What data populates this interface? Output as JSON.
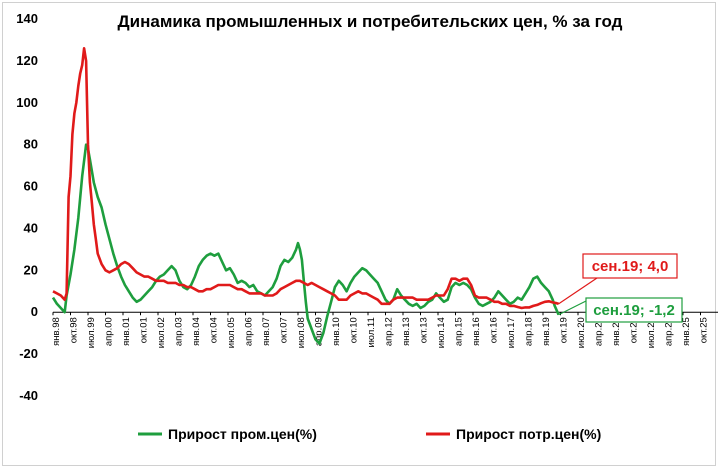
{
  "chart_data": {
    "type": "line",
    "title": "Динамика промышленных и потребительских цен, % за год",
    "xlabel": "",
    "ylabel": "",
    "ylim": [
      -40,
      140
    ],
    "yticks": [
      -40,
      -20,
      0,
      20,
      40,
      60,
      80,
      100,
      120,
      140
    ],
    "grid": false,
    "legend_position": "bottom",
    "x_tick_labels": [
      "янв.98",
      "окт.98",
      "июл.99",
      "апр.00",
      "янв.01",
      "окт.01",
      "июл.02",
      "апр.03",
      "янв.04",
      "окт.04",
      "июл.05",
      "апр.06",
      "янв.07",
      "окт.07",
      "июл.08",
      "апр.09",
      "янв.10",
      "окт.10",
      "июл.11",
      "апр.12",
      "янв.13",
      "окт.13",
      "июл.14",
      "апр.15",
      "янв.16",
      "окт.16",
      "июл.17",
      "апр.18",
      "янв.19",
      "окт.19",
      "июл.20",
      "апр.21",
      "янв.22",
      "окт.22",
      "июл.23",
      "апр.24",
      "янв.25",
      "окт.25"
    ],
    "series": [
      {
        "name": "Прирост пром.цен(%)",
        "color": "#1e9e3e",
        "points": [
          [
            "1998-01",
            7
          ],
          [
            "1998-03",
            4
          ],
          [
            "1998-05",
            2
          ],
          [
            "1998-07",
            0
          ],
          [
            "1998-08",
            8
          ],
          [
            "1998-10",
            18
          ],
          [
            "1998-12",
            30
          ],
          [
            "1999-02",
            45
          ],
          [
            "1999-04",
            65
          ],
          [
            "1999-06",
            80
          ],
          [
            "1999-07",
            78
          ],
          [
            "1999-08",
            73
          ],
          [
            "1999-10",
            62
          ],
          [
            "1999-12",
            55
          ],
          [
            "2000-02",
            50
          ],
          [
            "2000-04",
            42
          ],
          [
            "2000-06",
            35
          ],
          [
            "2000-08",
            28
          ],
          [
            "2000-10",
            22
          ],
          [
            "2000-12",
            17
          ],
          [
            "2001-02",
            13
          ],
          [
            "2001-04",
            10
          ],
          [
            "2001-06",
            7
          ],
          [
            "2001-08",
            5
          ],
          [
            "2001-10",
            6
          ],
          [
            "2001-12",
            8
          ],
          [
            "2002-02",
            10
          ],
          [
            "2002-04",
            12
          ],
          [
            "2002-06",
            15
          ],
          [
            "2002-08",
            17
          ],
          [
            "2002-10",
            18
          ],
          [
            "2002-12",
            20
          ],
          [
            "2003-02",
            22
          ],
          [
            "2003-04",
            20
          ],
          [
            "2003-06",
            15
          ],
          [
            "2003-08",
            12
          ],
          [
            "2003-10",
            11
          ],
          [
            "2003-12",
            13
          ],
          [
            "2004-02",
            17
          ],
          [
            "2004-04",
            22
          ],
          [
            "2004-06",
            25
          ],
          [
            "2004-08",
            27
          ],
          [
            "2004-10",
            28
          ],
          [
            "2004-12",
            27
          ],
          [
            "2005-02",
            28
          ],
          [
            "2005-04",
            24
          ],
          [
            "2005-06",
            20
          ],
          [
            "2005-08",
            21
          ],
          [
            "2005-10",
            18
          ],
          [
            "2005-12",
            14
          ],
          [
            "2006-02",
            15
          ],
          [
            "2006-04",
            14
          ],
          [
            "2006-06",
            12
          ],
          [
            "2006-08",
            13
          ],
          [
            "2006-10",
            10
          ],
          [
            "2006-12",
            9
          ],
          [
            "2007-02",
            8
          ],
          [
            "2007-04",
            10
          ],
          [
            "2007-06",
            12
          ],
          [
            "2007-08",
            16
          ],
          [
            "2007-10",
            22
          ],
          [
            "2007-12",
            25
          ],
          [
            "2008-02",
            24
          ],
          [
            "2008-04",
            26
          ],
          [
            "2008-06",
            30
          ],
          [
            "2008-07",
            33
          ],
          [
            "2008-08",
            30
          ],
          [
            "2008-09",
            25
          ],
          [
            "2008-10",
            15
          ],
          [
            "2008-11",
            5
          ],
          [
            "2008-12",
            -3
          ],
          [
            "2009-02",
            -8
          ],
          [
            "2009-04",
            -13
          ],
          [
            "2009-06",
            -15
          ],
          [
            "2009-08",
            -10
          ],
          [
            "2009-10",
            -2
          ],
          [
            "2009-12",
            5
          ],
          [
            "2010-02",
            12
          ],
          [
            "2010-04",
            15
          ],
          [
            "2010-06",
            13
          ],
          [
            "2010-08",
            10
          ],
          [
            "2010-10",
            14
          ],
          [
            "2010-12",
            17
          ],
          [
            "2011-02",
            19
          ],
          [
            "2011-04",
            21
          ],
          [
            "2011-06",
            20
          ],
          [
            "2011-08",
            18
          ],
          [
            "2011-10",
            16
          ],
          [
            "2011-12",
            14
          ],
          [
            "2012-02",
            10
          ],
          [
            "2012-04",
            6
          ],
          [
            "2012-06",
            4
          ],
          [
            "2012-08",
            6
          ],
          [
            "2012-10",
            11
          ],
          [
            "2012-12",
            8
          ],
          [
            "2013-02",
            6
          ],
          [
            "2013-04",
            4
          ],
          [
            "2013-06",
            3
          ],
          [
            "2013-08",
            4
          ],
          [
            "2013-10",
            2
          ],
          [
            "2013-12",
            3
          ],
          [
            "2014-02",
            5
          ],
          [
            "2014-04",
            6
          ],
          [
            "2014-06",
            9
          ],
          [
            "2014-08",
            7
          ],
          [
            "2014-10",
            5
          ],
          [
            "2014-12",
            6
          ],
          [
            "2015-02",
            12
          ],
          [
            "2015-04",
            14
          ],
          [
            "2015-06",
            13
          ],
          [
            "2015-08",
            14
          ],
          [
            "2015-10",
            13
          ],
          [
            "2015-12",
            11
          ],
          [
            "2016-02",
            7
          ],
          [
            "2016-04",
            4
          ],
          [
            "2016-06",
            3
          ],
          [
            "2016-08",
            4
          ],
          [
            "2016-10",
            5
          ],
          [
            "2016-12",
            7
          ],
          [
            "2017-02",
            10
          ],
          [
            "2017-04",
            8
          ],
          [
            "2017-06",
            6
          ],
          [
            "2017-08",
            4
          ],
          [
            "2017-10",
            5
          ],
          [
            "2017-12",
            7
          ],
          [
            "2018-02",
            6
          ],
          [
            "2018-04",
            9
          ],
          [
            "2018-06",
            12
          ],
          [
            "2018-08",
            16
          ],
          [
            "2018-10",
            17
          ],
          [
            "2018-12",
            14
          ],
          [
            "2019-02",
            12
          ],
          [
            "2019-04",
            10
          ],
          [
            "2019-06",
            6
          ],
          [
            "2019-07",
            3
          ],
          [
            "2019-08",
            1
          ],
          [
            "2019-09",
            -1.2
          ]
        ]
      },
      {
        "name": "Прирост потр.цен(%)",
        "color": "#e01a1a",
        "points": [
          [
            "1998-01",
            10
          ],
          [
            "1998-03",
            9
          ],
          [
            "1998-05",
            8
          ],
          [
            "1998-07",
            6
          ],
          [
            "1998-08",
            9
          ],
          [
            "1998-09",
            55
          ],
          [
            "1998-10",
            65
          ],
          [
            "1998-11",
            85
          ],
          [
            "1998-12",
            95
          ],
          [
            "1999-01",
            100
          ],
          [
            "1999-02",
            108
          ],
          [
            "1999-03",
            114
          ],
          [
            "1999-04",
            118
          ],
          [
            "1999-05",
            126
          ],
          [
            "1999-06",
            120
          ],
          [
            "1999-07",
            80
          ],
          [
            "1999-08",
            62
          ],
          [
            "1999-09",
            52
          ],
          [
            "1999-10",
            42
          ],
          [
            "1999-11",
            35
          ],
          [
            "1999-12",
            28
          ],
          [
            "2000-02",
            23
          ],
          [
            "2000-04",
            20
          ],
          [
            "2000-06",
            19
          ],
          [
            "2000-08",
            20
          ],
          [
            "2000-10",
            21
          ],
          [
            "2000-12",
            23
          ],
          [
            "2001-02",
            24
          ],
          [
            "2001-04",
            23
          ],
          [
            "2001-06",
            21
          ],
          [
            "2001-08",
            19
          ],
          [
            "2001-10",
            18
          ],
          [
            "2001-12",
            17
          ],
          [
            "2002-02",
            17
          ],
          [
            "2002-04",
            16
          ],
          [
            "2002-06",
            15
          ],
          [
            "2002-08",
            15
          ],
          [
            "2002-10",
            15
          ],
          [
            "2002-12",
            14
          ],
          [
            "2003-02",
            14
          ],
          [
            "2003-04",
            14
          ],
          [
            "2003-06",
            13
          ],
          [
            "2003-08",
            13
          ],
          [
            "2003-10",
            12
          ],
          [
            "2003-12",
            12
          ],
          [
            "2004-02",
            11
          ],
          [
            "2004-04",
            10
          ],
          [
            "2004-06",
            10
          ],
          [
            "2004-08",
            11
          ],
          [
            "2004-10",
            11
          ],
          [
            "2004-12",
            12
          ],
          [
            "2005-02",
            13
          ],
          [
            "2005-04",
            13
          ],
          [
            "2005-06",
            13
          ],
          [
            "2005-08",
            13
          ],
          [
            "2005-10",
            12
          ],
          [
            "2005-12",
            11
          ],
          [
            "2006-02",
            11
          ],
          [
            "2006-04",
            10
          ],
          [
            "2006-06",
            9
          ],
          [
            "2006-08",
            9
          ],
          [
            "2006-10",
            9
          ],
          [
            "2006-12",
            9
          ],
          [
            "2007-02",
            8
          ],
          [
            "2007-04",
            8
          ],
          [
            "2007-06",
            8
          ],
          [
            "2007-08",
            9
          ],
          [
            "2007-10",
            11
          ],
          [
            "2007-12",
            12
          ],
          [
            "2008-02",
            13
          ],
          [
            "2008-04",
            14
          ],
          [
            "2008-06",
            15
          ],
          [
            "2008-08",
            15
          ],
          [
            "2008-10",
            14
          ],
          [
            "2008-12",
            13
          ],
          [
            "2009-02",
            14
          ],
          [
            "2009-04",
            13
          ],
          [
            "2009-06",
            12
          ],
          [
            "2009-08",
            11
          ],
          [
            "2009-10",
            10
          ],
          [
            "2009-12",
            9
          ],
          [
            "2010-02",
            8
          ],
          [
            "2010-04",
            6
          ],
          [
            "2010-06",
            6
          ],
          [
            "2010-08",
            6
          ],
          [
            "2010-10",
            8
          ],
          [
            "2010-12",
            9
          ],
          [
            "2011-02",
            10
          ],
          [
            "2011-04",
            9
          ],
          [
            "2011-06",
            9
          ],
          [
            "2011-08",
            8
          ],
          [
            "2011-10",
            7
          ],
          [
            "2011-12",
            6
          ],
          [
            "2012-02",
            4
          ],
          [
            "2012-04",
            4
          ],
          [
            "2012-06",
            4
          ],
          [
            "2012-08",
            6
          ],
          [
            "2012-10",
            7
          ],
          [
            "2012-12",
            7
          ],
          [
            "2013-02",
            7
          ],
          [
            "2013-04",
            7
          ],
          [
            "2013-06",
            7
          ],
          [
            "2013-08",
            6
          ],
          [
            "2013-10",
            6
          ],
          [
            "2013-12",
            6
          ],
          [
            "2014-02",
            6
          ],
          [
            "2014-04",
            7
          ],
          [
            "2014-06",
            8
          ],
          [
            "2014-08",
            8
          ],
          [
            "2014-10",
            8
          ],
          [
            "2014-12",
            11
          ],
          [
            "2015-02",
            16
          ],
          [
            "2015-04",
            16
          ],
          [
            "2015-06",
            15
          ],
          [
            "2015-08",
            16
          ],
          [
            "2015-10",
            16
          ],
          [
            "2015-12",
            13
          ],
          [
            "2016-02",
            8
          ],
          [
            "2016-04",
            7
          ],
          [
            "2016-06",
            7
          ],
          [
            "2016-08",
            7
          ],
          [
            "2016-10",
            6
          ],
          [
            "2016-12",
            5
          ],
          [
            "2017-02",
            5
          ],
          [
            "2017-04",
            4
          ],
          [
            "2017-06",
            4
          ],
          [
            "2017-08",
            3
          ],
          [
            "2017-10",
            3
          ],
          [
            "2017-12",
            2.5
          ],
          [
            "2018-02",
            2
          ],
          [
            "2018-04",
            2.3
          ],
          [
            "2018-06",
            2.3
          ],
          [
            "2018-08",
            3
          ],
          [
            "2018-10",
            3.5
          ],
          [
            "2018-12",
            4.3
          ],
          [
            "2019-02",
            5
          ],
          [
            "2019-04",
            5.2
          ],
          [
            "2019-06",
            4.7
          ],
          [
            "2019-08",
            4.3
          ],
          [
            "2019-09",
            4.0
          ]
        ]
      }
    ],
    "annotations": [
      {
        "text": "сен.19; 4,0",
        "color": "#e01a1a",
        "at": [
          "2019-09",
          4.0
        ]
      },
      {
        "text": "сен.19; -1,2",
        "color": "#1e9e3e",
        "at": [
          "2019-09",
          -1.2
        ]
      }
    ]
  }
}
